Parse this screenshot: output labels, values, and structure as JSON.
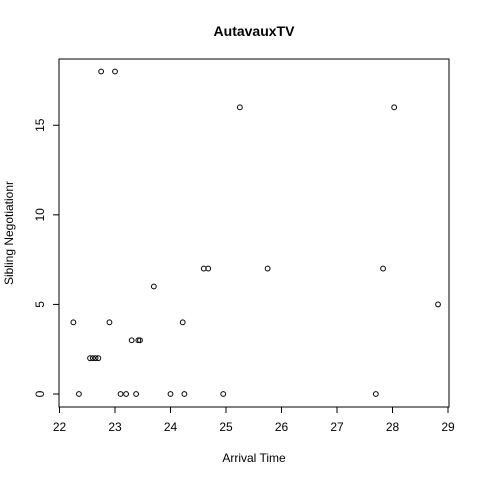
{
  "chart_data": {
    "type": "scatter",
    "title": "AutavauxTV",
    "xlabel": "Arrival Time",
    "ylabel": "Sibling Negotiationr",
    "xlim": [
      22.0,
      29.0
    ],
    "ylim": [
      0,
      18
    ],
    "x_ticks": [
      22,
      23,
      24,
      25,
      26,
      27,
      28,
      29
    ],
    "y_ticks": [
      0,
      5,
      10,
      15
    ],
    "grid": false,
    "legend": "none",
    "marker": "open-circle",
    "points": [
      {
        "x": 22.25,
        "y": 4
      },
      {
        "x": 22.35,
        "y": 0
      },
      {
        "x": 22.55,
        "y": 2
      },
      {
        "x": 22.6,
        "y": 2
      },
      {
        "x": 22.65,
        "y": 2
      },
      {
        "x": 22.7,
        "y": 2
      },
      {
        "x": 22.75,
        "y": 18
      },
      {
        "x": 22.9,
        "y": 4
      },
      {
        "x": 23.0,
        "y": 18
      },
      {
        "x": 23.1,
        "y": 0
      },
      {
        "x": 23.2,
        "y": 0
      },
      {
        "x": 23.3,
        "y": 3
      },
      {
        "x": 23.38,
        "y": 0
      },
      {
        "x": 23.42,
        "y": 3
      },
      {
        "x": 23.45,
        "y": 3
      },
      {
        "x": 23.7,
        "y": 6
      },
      {
        "x": 24.0,
        "y": 0
      },
      {
        "x": 24.22,
        "y": 4
      },
      {
        "x": 24.25,
        "y": 0
      },
      {
        "x": 24.6,
        "y": 7
      },
      {
        "x": 24.68,
        "y": 7
      },
      {
        "x": 24.95,
        "y": 0
      },
      {
        "x": 25.25,
        "y": 16
      },
      {
        "x": 25.75,
        "y": 7
      },
      {
        "x": 27.7,
        "y": 0
      },
      {
        "x": 27.83,
        "y": 7
      },
      {
        "x": 28.03,
        "y": 16
      },
      {
        "x": 28.82,
        "y": 5
      }
    ]
  }
}
